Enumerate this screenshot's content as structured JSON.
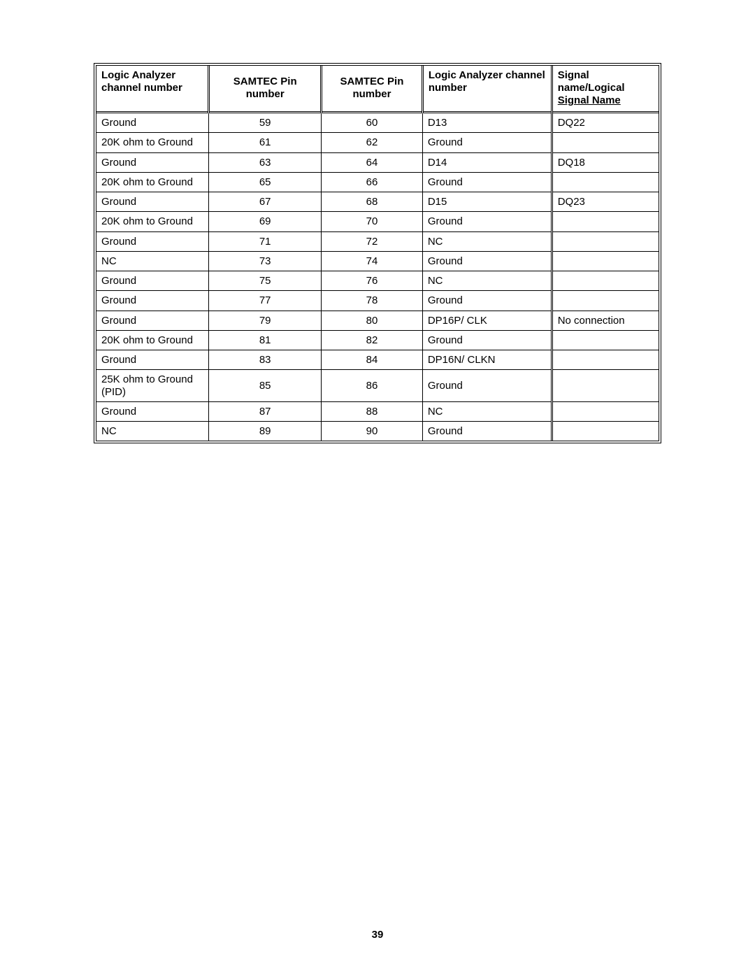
{
  "page_number": "39",
  "table": {
    "columns": [
      {
        "key": "la_a",
        "header": "Logic Analyzer channel number",
        "header_align": "left",
        "col_class": "col-la-a"
      },
      {
        "key": "samtec_a",
        "header": "SAMTEC Pin number",
        "header_align": "center",
        "col_class": "col-samtec-a"
      },
      {
        "key": "samtec_b",
        "header": "SAMTEC Pin number",
        "header_align": "center",
        "col_class": "col-samtec-b"
      },
      {
        "key": "la_b",
        "header": "Logic Analyzer channel number",
        "header_align": "left",
        "col_class": "col-la-b"
      },
      {
        "key": "signal",
        "header_lines": [
          "Signal",
          "name/Logical"
        ],
        "header_underlined": "Signal Name",
        "header_align": "left",
        "col_class": "col-signal"
      }
    ],
    "cell_align": {
      "la_a": "left",
      "samtec_a": "center",
      "samtec_b": "center",
      "la_b": "left",
      "signal": "left"
    },
    "rows": [
      {
        "la_a": "Ground",
        "samtec_a": "59",
        "samtec_b": "60",
        "la_b": "D13",
        "signal": "DQ22"
      },
      {
        "la_a": "20K ohm to Ground",
        "samtec_a": "61",
        "samtec_b": "62",
        "la_b": "Ground",
        "signal": ""
      },
      {
        "la_a": "Ground",
        "samtec_a": "63",
        "samtec_b": "64",
        "la_b": "D14",
        "signal": "DQ18"
      },
      {
        "la_a": "20K ohm to Ground",
        "samtec_a": "65",
        "samtec_b": "66",
        "la_b": "Ground",
        "signal": ""
      },
      {
        "la_a": "Ground",
        "samtec_a": "67",
        "samtec_b": "68",
        "la_b": "D15",
        "signal": "DQ23"
      },
      {
        "la_a": "20K ohm to Ground",
        "samtec_a": "69",
        "samtec_b": "70",
        "la_b": "Ground",
        "signal": ""
      },
      {
        "la_a": "Ground",
        "samtec_a": "71",
        "samtec_b": "72",
        "la_b": "NC",
        "signal": ""
      },
      {
        "la_a": "NC",
        "samtec_a": "73",
        "samtec_b": "74",
        "la_b": "Ground",
        "signal": ""
      },
      {
        "la_a": "Ground",
        "samtec_a": "75",
        "samtec_b": "76",
        "la_b": "NC",
        "signal": ""
      },
      {
        "la_a": "Ground",
        "samtec_a": "77",
        "samtec_b": "78",
        "la_b": "Ground",
        "signal": ""
      },
      {
        "la_a": "Ground",
        "samtec_a": "79",
        "samtec_b": "80",
        "la_b": "DP16P/ CLK",
        "signal": "No connection"
      },
      {
        "la_a": "20K ohm to Ground",
        "samtec_a": "81",
        "samtec_b": "82",
        "la_b": "Ground",
        "signal": ""
      },
      {
        "la_a": "Ground",
        "samtec_a": "83",
        "samtec_b": "84",
        "la_b": "DP16N/ CLKN",
        "signal": ""
      },
      {
        "la_a": "25K ohm to Ground (PID)",
        "samtec_a": "85",
        "samtec_b": "86",
        "la_b": "Ground",
        "signal": ""
      },
      {
        "la_a": "Ground",
        "samtec_a": "87",
        "samtec_b": "88",
        "la_b": "NC",
        "signal": ""
      },
      {
        "la_a": "NC",
        "samtec_a": "89",
        "samtec_b": "90",
        "la_b": "Ground",
        "signal": ""
      }
    ]
  }
}
